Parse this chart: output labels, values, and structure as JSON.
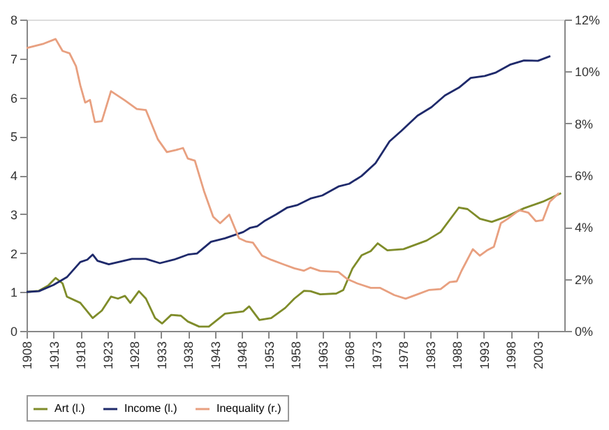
{
  "chart_data": {
    "type": "line",
    "xlim": [
      1908,
      2008
    ],
    "xticks": [
      1908,
      1913,
      1918,
      1923,
      1928,
      1933,
      1938,
      1943,
      1948,
      1953,
      1958,
      1963,
      1968,
      1973,
      1978,
      1983,
      1988,
      1993,
      1998,
      2003
    ],
    "ylim": [
      0,
      8
    ],
    "yticks": [
      0,
      1,
      2,
      3,
      4,
      5,
      6,
      7,
      8
    ],
    "y2lim": [
      0,
      12
    ],
    "y2ticks": [
      {
        "value": 0,
        "label": "0%"
      },
      {
        "value": 2,
        "label": "2%"
      },
      {
        "value": 4,
        "label": "4%"
      },
      {
        "value": 6,
        "label": "6%"
      },
      {
        "value": 8,
        "label": "8%"
      },
      {
        "value": 10,
        "label": "10%"
      },
      {
        "value": 12,
        "label": "12%"
      }
    ],
    "grid": false,
    "legend": "bottom",
    "marker": "none",
    "line_style": "solid",
    "series": [
      {
        "name": "Art (l.)",
        "color": "#7f8c2a",
        "axis": "y",
        "x": [
          1908,
          1910.3,
          1912,
          1913.4,
          1914.7,
          1915.5,
          1918,
          1920.3,
          1922,
          1923.7,
          1925,
          1926.3,
          1927.3,
          1928.9,
          1930.2,
          1931.9,
          1933.2,
          1934.9,
          1936.7,
          1938,
          1940.1,
          1941.9,
          1944.9,
          1948.3,
          1949.4,
          1951.3,
          1953.5,
          1956.1,
          1957.8,
          1959.6,
          1960.8,
          1962.6,
          1965.6,
          1966.9,
          1968.6,
          1970.3,
          1972,
          1973.3,
          1975.1,
          1978.1,
          1982.4,
          1985,
          1988.4,
          1990,
          1992.3,
          1994.5,
          1997.1,
          2000.5,
          2004,
          2007.4
        ],
        "values": [
          1.0,
          1.03,
          1.16,
          1.36,
          1.22,
          0.88,
          0.72,
          0.33,
          0.52,
          0.88,
          0.83,
          0.9,
          0.72,
          1.02,
          0.83,
          0.33,
          0.19,
          0.41,
          0.39,
          0.24,
          0.11,
          0.11,
          0.44,
          0.5,
          0.63,
          0.28,
          0.33,
          0.59,
          0.83,
          1.03,
          1.02,
          0.94,
          0.96,
          1.05,
          1.6,
          1.94,
          2.05,
          2.25,
          2.07,
          2.1,
          2.32,
          2.54,
          3.17,
          3.13,
          2.88,
          2.8,
          2.93,
          3.15,
          3.32,
          3.54
        ]
      },
      {
        "name": "Income (l.)",
        "color": "#1f2a6b",
        "axis": "y",
        "x": [
          1908,
          1910.3,
          1913,
          1915.5,
          1918,
          1919.3,
          1920.3,
          1921.2,
          1923.3,
          1927.6,
          1930.2,
          1932.8,
          1935.4,
          1938,
          1939.7,
          1942.3,
          1944.9,
          1948.3,
          1949.6,
          1950.9,
          1952.2,
          1954.4,
          1956.5,
          1958.3,
          1960.8,
          1963,
          1966,
          1968,
          1970.3,
          1972.9,
          1975.5,
          1977.7,
          1980.7,
          1983.3,
          1985.8,
          1988.4,
          1990.6,
          1993.2,
          1995.3,
          1997.9,
          2000.5,
          2003.1,
          2005.4
        ],
        "values": [
          1.0,
          1.02,
          1.18,
          1.38,
          1.77,
          1.83,
          1.96,
          1.8,
          1.71,
          1.85,
          1.85,
          1.74,
          1.83,
          1.96,
          1.99,
          2.29,
          2.38,
          2.54,
          2.65,
          2.69,
          2.82,
          2.99,
          3.17,
          3.23,
          3.4,
          3.48,
          3.71,
          3.78,
          3.98,
          4.31,
          4.87,
          5.14,
          5.53,
          5.75,
          6.05,
          6.25,
          6.5,
          6.55,
          6.64,
          6.84,
          6.95,
          6.94,
          7.06
        ]
      },
      {
        "name": "Inequality (r.)",
        "color": "#e8a080",
        "axis": "y2",
        "x": [
          1908,
          1911.2,
          1913.4,
          1914.7,
          1916,
          1917.2,
          1918,
          1918.9,
          1919.8,
          1920.7,
          1922,
          1923.7,
          1926.3,
          1928.5,
          1930.2,
          1932.4,
          1934.1,
          1935.8,
          1937.1,
          1938,
          1939.3,
          1941,
          1942.7,
          1944,
          1945.7,
          1947.5,
          1948.8,
          1950.1,
          1951.8,
          1953.5,
          1955.7,
          1957.8,
          1959.6,
          1960.8,
          1962.6,
          1966,
          1967.7,
          1969.5,
          1972,
          1973.7,
          1976.4,
          1978.5,
          1980.7,
          1982.9,
          1985,
          1986.7,
          1988,
          1988.9,
          1991,
          1992.3,
          1993.6,
          1994.9,
          1996.2,
          1997.5,
          1999.6,
          2001.3,
          2002.7,
          2004,
          2005.3,
          2007
        ],
        "values": [
          10.9,
          11.07,
          11.25,
          10.79,
          10.7,
          10.2,
          9.46,
          8.8,
          8.9,
          8.05,
          8.08,
          9.24,
          8.88,
          8.55,
          8.51,
          7.39,
          6.89,
          6.97,
          7.05,
          6.64,
          6.56,
          5.39,
          4.4,
          4.15,
          4.48,
          3.57,
          3.45,
          3.4,
          2.9,
          2.74,
          2.57,
          2.41,
          2.32,
          2.44,
          2.31,
          2.27,
          1.99,
          1.83,
          1.66,
          1.66,
          1.38,
          1.24,
          1.41,
          1.58,
          1.61,
          1.88,
          1.91,
          2.32,
          3.15,
          2.9,
          3.1,
          3.24,
          4.15,
          4.32,
          4.65,
          4.56,
          4.23,
          4.27,
          4.98,
          5.31
        ]
      }
    ]
  }
}
